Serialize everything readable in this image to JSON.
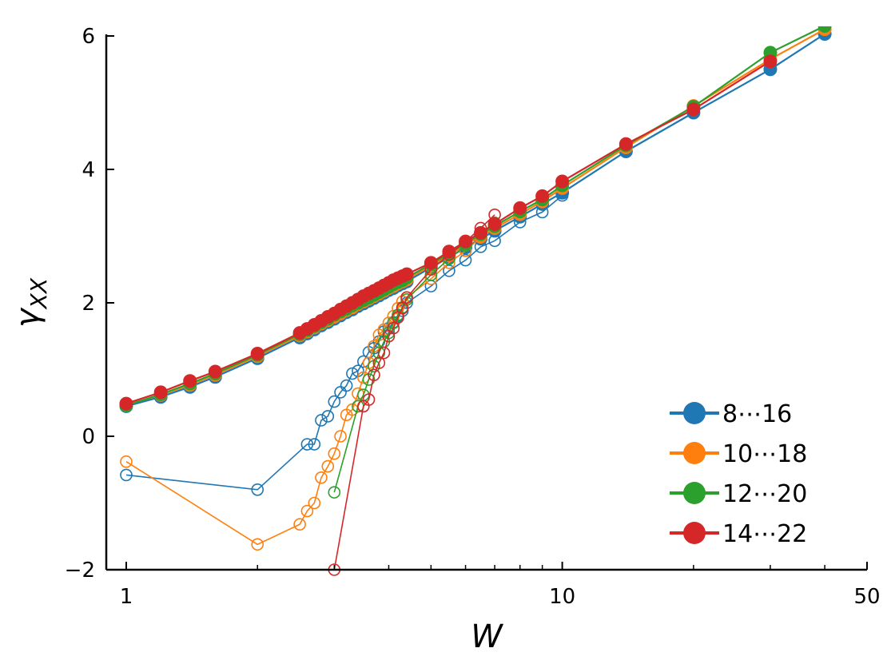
{
  "chart_data": {
    "type": "line",
    "xlabel": "W",
    "ylabel": "γ_XX",
    "xscale": "log",
    "xlim": [
      0.9,
      50
    ],
    "ylim": [
      -2,
      6
    ],
    "xticks": [
      1,
      10,
      50
    ],
    "xtick_labels": [
      "1",
      "10",
      "50"
    ],
    "yticks": [
      -2,
      0,
      2,
      4,
      6
    ],
    "ytick_labels": [
      "−2",
      "0",
      "2",
      "4",
      "6"
    ],
    "legend_position": "lower-right",
    "grid": false,
    "series": [
      {
        "name": "8⋯16",
        "color": "#1f77b4",
        "filled": {
          "x": [
            1,
            1.2,
            1.4,
            1.6,
            2,
            2.5,
            2.6,
            2.7,
            2.8,
            2.9,
            3.0,
            3.1,
            3.2,
            3.3,
            3.4,
            3.5,
            3.6,
            3.7,
            3.8,
            3.9,
            4.0,
            4.1,
            4.2,
            4.3,
            4.4,
            5,
            5.5,
            6,
            6.5,
            7,
            8,
            9,
            10,
            14,
            20,
            30,
            40
          ],
          "y": [
            0.45,
            0.59,
            0.74,
            0.89,
            1.17,
            1.48,
            1.54,
            1.6,
            1.66,
            1.71,
            1.76,
            1.81,
            1.86,
            1.9,
            1.95,
            1.99,
            2.03,
            2.07,
            2.11,
            2.15,
            2.19,
            2.22,
            2.26,
            2.29,
            2.32,
            2.53,
            2.68,
            2.83,
            2.96,
            3.08,
            3.29,
            3.48,
            3.65,
            4.27,
            4.85,
            5.5,
            6.03
          ]
        },
        "open": {
          "x": [
            1,
            2,
            2.6,
            2.7,
            2.8,
            2.9,
            3.0,
            3.1,
            3.2,
            3.3,
            3.4,
            3.5,
            3.6,
            3.7,
            3.8,
            3.9,
            4.0,
            4.1,
            4.2,
            4.3,
            4.4,
            5,
            5.5,
            6,
            6.5,
            7,
            8,
            9,
            10
          ],
          "y": [
            -0.58,
            -0.8,
            -0.12,
            -0.12,
            0.24,
            0.3,
            0.52,
            0.66,
            0.76,
            0.94,
            0.98,
            1.12,
            1.26,
            1.32,
            1.42,
            1.57,
            1.62,
            1.71,
            1.8,
            1.88,
            2.0,
            2.25,
            2.48,
            2.64,
            2.84,
            2.93,
            3.21,
            3.36,
            3.61
          ]
        }
      },
      {
        "name": "10⋯18",
        "color": "#ff7f0e",
        "filled": {
          "x": [
            1,
            1.2,
            1.4,
            1.6,
            2,
            2.5,
            2.6,
            2.7,
            2.8,
            2.9,
            3.0,
            3.1,
            3.2,
            3.3,
            3.4,
            3.5,
            3.6,
            3.7,
            3.8,
            3.9,
            4.0,
            4.1,
            4.2,
            4.3,
            4.4,
            5,
            5.5,
            6,
            6.5,
            7,
            8,
            9,
            10,
            14,
            20,
            30,
            40
          ],
          "y": [
            0.47,
            0.62,
            0.77,
            0.92,
            1.2,
            1.51,
            1.57,
            1.63,
            1.69,
            1.74,
            1.79,
            1.84,
            1.89,
            1.93,
            1.98,
            2.02,
            2.06,
            2.1,
            2.14,
            2.18,
            2.22,
            2.25,
            2.29,
            2.32,
            2.35,
            2.56,
            2.71,
            2.87,
            3.0,
            3.12,
            3.33,
            3.52,
            3.72,
            4.33,
            4.95,
            5.65,
            6.1
          ]
        },
        "open": {
          "x": [
            1,
            2,
            2.5,
            2.6,
            2.7,
            2.8,
            2.9,
            3.0,
            3.1,
            3.2,
            3.3,
            3.4,
            3.5,
            3.6,
            3.7,
            3.8,
            3.9,
            4.0,
            4.1,
            4.2,
            4.3,
            4.4,
            5,
            5.5,
            6,
            6.5,
            7
          ],
          "y": [
            -0.38,
            -1.62,
            -1.32,
            -1.12,
            -1.0,
            -0.62,
            -0.45,
            -0.26,
            0.0,
            0.32,
            0.4,
            0.64,
            0.88,
            1.1,
            1.35,
            1.52,
            1.6,
            1.7,
            1.8,
            1.92,
            2.02,
            2.08,
            2.36,
            2.6,
            2.78,
            2.98,
            3.15
          ]
        }
      },
      {
        "name": "12⋯20",
        "color": "#2ca02c",
        "filled": {
          "x": [
            1,
            1.2,
            1.4,
            1.6,
            2,
            2.5,
            2.6,
            2.7,
            2.8,
            2.9,
            3.0,
            3.1,
            3.2,
            3.3,
            3.4,
            3.5,
            3.6,
            3.7,
            3.8,
            3.9,
            4.0,
            4.1,
            4.2,
            4.3,
            4.4,
            5,
            5.5,
            6,
            6.5,
            7,
            8,
            9,
            10,
            14,
            20,
            30,
            40
          ],
          "y": [
            0.46,
            0.63,
            0.79,
            0.94,
            1.22,
            1.53,
            1.59,
            1.65,
            1.71,
            1.76,
            1.82,
            1.87,
            1.91,
            1.96,
            2.0,
            2.04,
            2.08,
            2.12,
            2.16,
            2.2,
            2.24,
            2.28,
            2.31,
            2.34,
            2.38,
            2.58,
            2.74,
            2.89,
            3.03,
            3.15,
            3.37,
            3.55,
            3.76,
            4.36,
            4.94,
            5.75,
            6.15
          ]
        },
        "open": {
          "x": [
            3.0,
            3.4,
            3.5,
            3.6,
            3.7,
            3.8,
            3.9,
            4.0,
            4.1,
            4.2,
            4.3,
            4.4,
            5,
            5.5,
            6,
            6.5,
            7
          ],
          "y": [
            -0.84,
            0.45,
            0.62,
            0.85,
            1.05,
            1.25,
            1.42,
            1.55,
            1.7,
            1.82,
            1.93,
            2.05,
            2.42,
            2.66,
            2.86,
            3.05,
            3.2
          ]
        }
      },
      {
        "name": "14⋯22",
        "color": "#d62728",
        "filled": {
          "x": [
            1,
            1.2,
            1.4,
            1.6,
            2,
            2.5,
            2.6,
            2.7,
            2.8,
            2.9,
            3.0,
            3.1,
            3.2,
            3.3,
            3.4,
            3.5,
            3.6,
            3.7,
            3.8,
            3.9,
            4.0,
            4.1,
            4.2,
            4.3,
            4.4,
            5,
            5.5,
            6,
            6.5,
            7,
            8,
            9,
            10,
            14,
            20,
            30
          ],
          "y": [
            0.49,
            0.66,
            0.83,
            0.97,
            1.24,
            1.55,
            1.61,
            1.67,
            1.73,
            1.79,
            1.84,
            1.9,
            1.95,
            2.0,
            2.05,
            2.1,
            2.14,
            2.18,
            2.22,
            2.26,
            2.3,
            2.34,
            2.37,
            2.4,
            2.43,
            2.6,
            2.77,
            2.92,
            3.05,
            3.18,
            3.42,
            3.6,
            3.82,
            4.38,
            4.9,
            5.62
          ]
        },
        "open": {
          "x": [
            3.0,
            3.5,
            3.6,
            3.7,
            3.8,
            3.9,
            4.0,
            4.1,
            4.2,
            4.3,
            4.4,
            5,
            5.5,
            6,
            6.5,
            7
          ],
          "y": [
            -2.0,
            0.45,
            0.55,
            0.92,
            1.1,
            1.25,
            1.5,
            1.62,
            1.78,
            1.92,
            2.08,
            2.5,
            2.72,
            2.92,
            3.12,
            3.32
          ]
        }
      }
    ]
  }
}
